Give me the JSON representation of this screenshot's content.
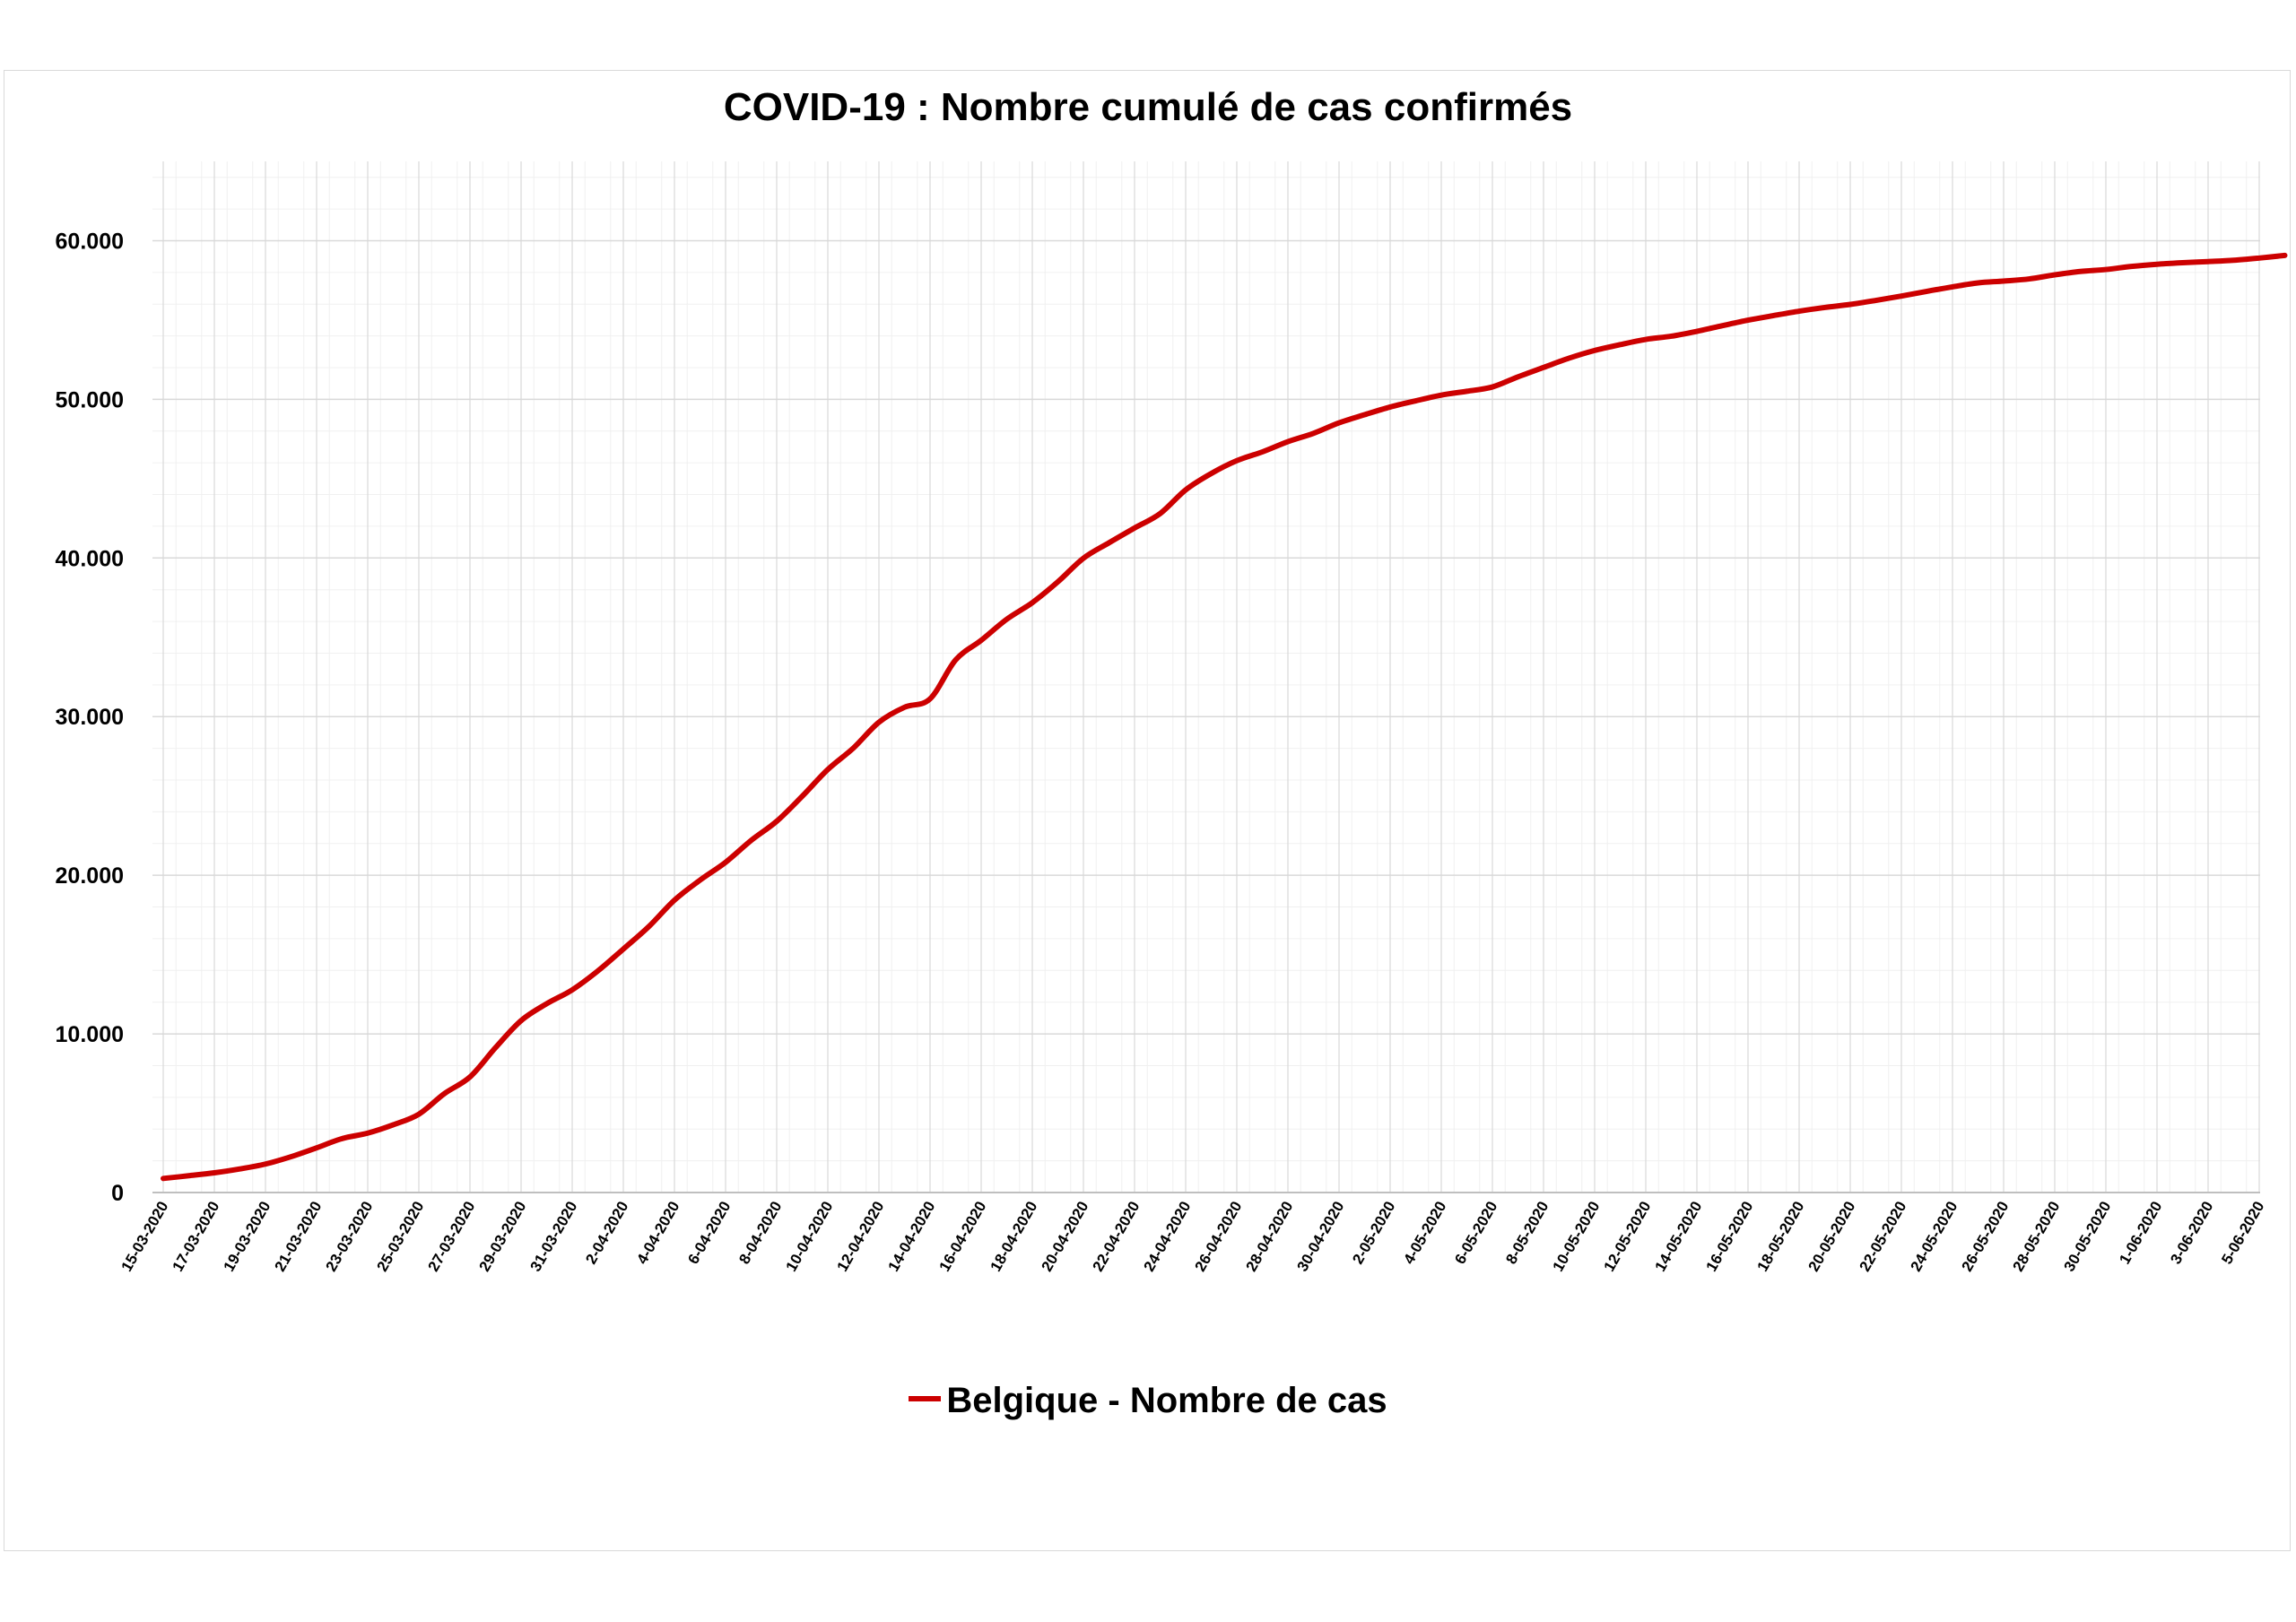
{
  "chart_data": {
    "type": "line",
    "title": "COVID-19 : Nombre cumulé de cas confirmés",
    "xlabel": "",
    "ylabel": "",
    "ylim": [
      0,
      65000
    ],
    "y_ticks": [
      0,
      10000,
      20000,
      30000,
      40000,
      50000,
      60000
    ],
    "y_tick_labels": [
      "0",
      "10.000",
      "20.000",
      "30.000",
      "40.000",
      "50.000",
      "60.000"
    ],
    "grid": true,
    "legend_position": "bottom",
    "x_tick_labels": [
      "15-03-2020",
      "17-03-2020",
      "19-03-2020",
      "21-03-2020",
      "23-03-2020",
      "25-03-2020",
      "27-03-2020",
      "29-03-2020",
      "31-03-2020",
      "2-04-2020",
      "4-04-2020",
      "6-04-2020",
      "8-04-2020",
      "10-04-2020",
      "12-04-2020",
      "14-04-2020",
      "16-04-2020",
      "18-04-2020",
      "20-04-2020",
      "22-04-2020",
      "24-04-2020",
      "26-04-2020",
      "28-04-2020",
      "30-04-2020",
      "2-05-2020",
      "4-05-2020",
      "6-05-2020",
      "8-05-2020",
      "10-05-2020",
      "12-05-2020",
      "14-05-2020",
      "16-05-2020",
      "18-05-2020",
      "20-05-2020",
      "22-05-2020",
      "24-05-2020",
      "26-05-2020",
      "28-05-2020",
      "30-05-2020",
      "1-06-2020",
      "3-06-2020",
      "5-06-2020"
    ],
    "series": [
      {
        "name": "Belgique - Nombre de cas",
        "color": "#cc0000",
        "x_start": "15-03-2020",
        "x_end": "6-06-2020",
        "values": [
          886,
          1058,
          1243,
          1486,
          1795,
          2257,
          2815,
          3401,
          3743,
          4269,
          4937,
          6235,
          7284,
          9134,
          10836,
          11899,
          12775,
          13964,
          15348,
          16770,
          18431,
          19691,
          20814,
          22194,
          23403,
          24983,
          26667,
          28018,
          29647,
          30589,
          31119,
          33573,
          34809,
          36138,
          37183,
          38496,
          39983,
          40956,
          41889,
          42797,
          44293,
          45325,
          46134,
          46687,
          47334,
          47859,
          48519,
          49032,
          49517,
          49906,
          50267,
          50509,
          50781,
          51420,
          52011,
          52596,
          53081,
          53449,
          53779,
          53981,
          54288,
          54644,
          54989,
          55280,
          55559,
          55791,
          55983,
          56235,
          56511,
          56810,
          57092,
          57342,
          57455,
          57592,
          57849,
          58061,
          58186,
          58381,
          58517,
          58615,
          58685,
          58767,
          58907,
          59072
        ]
      }
    ]
  }
}
